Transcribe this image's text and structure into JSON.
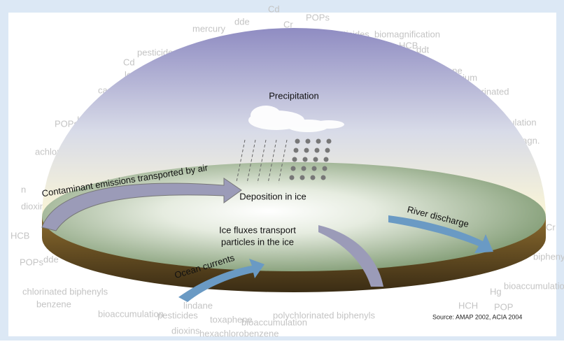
{
  "labels": {
    "precipitation": "Precipitation",
    "air": "Contaminant emissions transported by air",
    "deposition": "Deposition in ice",
    "ice_flux": [
      "Ice fluxes transport",
      "particles in the ice"
    ],
    "river": "River discharge",
    "ocean": "Ocean currents",
    "source": "Source: AMAP 2002, ACIA 2004"
  },
  "background_words": [
    "mercury",
    "dde",
    "Cd",
    "Cr",
    "POPs",
    "pesticides",
    "biomagnification",
    "HCB",
    "ddt",
    "Cd",
    "pesticides",
    "lead",
    "cadmium",
    "toxaphene",
    "chromium",
    "polychlorinated",
    "POPs",
    "HCB",
    "accumulation",
    "biomagn.",
    "cides",
    "Hg",
    "Cr",
    "HCB",
    "POPs",
    "dde",
    "biphenyl",
    "chlorinated biphenyls",
    "benzene",
    "bioaccumulation",
    "pesticides",
    "lindane",
    "toxaphene",
    "bioaccumulation",
    "polychlorinated biphenyls",
    "dioxins",
    "hexachlorobenzene",
    "HCH",
    "POP",
    "Hg",
    "bioaccumulation",
    "achlorobenzene",
    "dioxins",
    "n"
  ]
}
